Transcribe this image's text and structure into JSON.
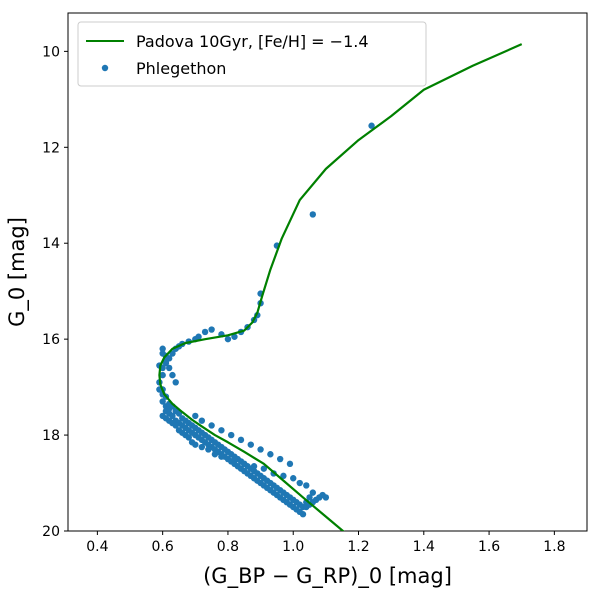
{
  "chart_data": {
    "type": "scatter",
    "xlabel": "(G_BP − G_RP)_0 [mag]",
    "ylabel": "G_0 [mag]",
    "xlim": [
      0.31,
      1.9
    ],
    "ylim": [
      20.0,
      9.2
    ],
    "y_inverted": true,
    "xticks": [
      "0.4",
      "0.6",
      "0.8",
      "1.0",
      "1.2",
      "1.4",
      "1.6",
      "1.8"
    ],
    "yticks": [
      "10",
      "12",
      "14",
      "16",
      "18",
      "20"
    ],
    "legend": {
      "placement": "top-left"
    },
    "series": [
      {
        "name": "Padova 10Gyr, [Fe/H] = −1.4",
        "kind": "line",
        "color": "#008000",
        "x": [
          1.17,
          1.1,
          1.03,
          0.97,
          0.91,
          0.85,
          0.8,
          0.76,
          0.72,
          0.69,
          0.66,
          0.63,
          0.605,
          0.593,
          0.59,
          0.593,
          0.605,
          0.63,
          0.67,
          0.73,
          0.8,
          0.85,
          0.875,
          0.89,
          0.905,
          0.93,
          0.965,
          1.02,
          1.1,
          1.2,
          1.3,
          1.4,
          1.55,
          1.7
        ],
        "y": [
          20.1,
          19.7,
          19.3,
          18.95,
          18.6,
          18.35,
          18.15,
          18.0,
          17.82,
          17.68,
          17.52,
          17.35,
          17.15,
          16.95,
          16.75,
          16.55,
          16.38,
          16.2,
          16.08,
          16.0,
          15.92,
          15.82,
          15.65,
          15.45,
          15.1,
          14.55,
          13.9,
          13.1,
          12.45,
          11.85,
          11.35,
          10.8,
          10.3,
          9.85
        ]
      },
      {
        "name": "Phlegethon",
        "kind": "scatter",
        "color": "#1f77b4",
        "x": [
          1.24,
          1.06,
          0.95,
          0.9,
          0.9,
          0.89,
          0.88,
          0.86,
          0.84,
          0.82,
          0.8,
          0.78,
          0.75,
          0.73,
          0.71,
          0.7,
          0.68,
          0.66,
          0.65,
          0.64,
          0.63,
          0.62,
          0.61,
          0.6,
          0.6,
          0.59,
          0.59,
          0.6,
          0.6,
          0.61,
          0.61,
          0.62,
          0.62,
          0.63,
          0.63,
          0.64,
          0.64,
          0.65,
          0.65,
          0.66,
          0.66,
          0.67,
          0.67,
          0.68,
          0.68,
          0.69,
          0.69,
          0.7,
          0.7,
          0.71,
          0.71,
          0.72,
          0.72,
          0.73,
          0.73,
          0.74,
          0.74,
          0.75,
          0.75,
          0.76,
          0.76,
          0.77,
          0.77,
          0.78,
          0.78,
          0.79,
          0.79,
          0.8,
          0.8,
          0.81,
          0.81,
          0.82,
          0.82,
          0.83,
          0.83,
          0.84,
          0.84,
          0.85,
          0.85,
          0.86,
          0.86,
          0.87,
          0.87,
          0.88,
          0.88,
          0.89,
          0.89,
          0.9,
          0.9,
          0.91,
          0.91,
          0.92,
          0.92,
          0.93,
          0.93,
          0.94,
          0.94,
          0.95,
          0.95,
          0.96,
          0.96,
          0.97,
          0.97,
          0.98,
          0.98,
          0.99,
          0.99,
          1.0,
          1.0,
          1.01,
          1.01,
          1.02,
          1.02,
          1.03,
          1.03,
          1.04,
          1.04,
          1.05,
          1.05,
          1.06,
          1.06,
          1.07,
          1.08,
          1.09,
          1.1,
          0.6,
          0.61,
          0.62,
          0.63,
          0.64,
          0.6,
          0.61,
          0.62,
          0.6,
          0.61,
          0.59,
          0.6,
          0.61,
          0.62,
          0.63,
          0.64,
          0.65,
          0.66,
          0.67,
          0.68,
          0.69,
          0.7,
          0.72,
          0.74,
          0.76,
          0.78,
          0.82,
          0.85,
          0.88,
          0.91,
          0.94,
          0.97,
          1.0,
          1.02,
          1.04,
          0.99,
          0.96,
          0.93,
          0.9,
          0.87,
          0.84,
          0.81,
          0.78,
          0.75,
          0.72,
          0.7
        ],
        "y": [
          11.55,
          13.4,
          14.05,
          15.05,
          15.25,
          15.5,
          15.6,
          15.75,
          15.85,
          15.95,
          16.0,
          15.9,
          15.8,
          15.85,
          15.95,
          16.0,
          16.05,
          16.1,
          16.15,
          16.2,
          16.3,
          16.4,
          16.5,
          16.6,
          16.75,
          16.9,
          17.05,
          17.15,
          17.3,
          17.4,
          17.5,
          17.55,
          17.45,
          17.6,
          17.4,
          17.7,
          17.5,
          17.75,
          17.55,
          17.8,
          17.65,
          17.85,
          17.7,
          17.9,
          17.75,
          17.95,
          17.8,
          18.0,
          17.85,
          18.05,
          17.9,
          18.1,
          17.95,
          18.15,
          18.0,
          18.2,
          18.05,
          18.25,
          18.1,
          18.3,
          18.15,
          18.35,
          18.2,
          18.4,
          18.25,
          18.45,
          18.3,
          18.5,
          18.35,
          18.55,
          18.4,
          18.6,
          18.45,
          18.65,
          18.5,
          18.7,
          18.55,
          18.75,
          18.6,
          18.8,
          18.65,
          18.85,
          18.7,
          18.9,
          18.75,
          18.95,
          18.8,
          19.0,
          18.85,
          19.05,
          18.9,
          19.1,
          18.95,
          19.15,
          19.0,
          19.2,
          19.05,
          19.25,
          19.1,
          19.3,
          19.15,
          19.35,
          19.2,
          19.4,
          19.25,
          19.45,
          19.3,
          19.5,
          19.35,
          19.55,
          19.4,
          19.6,
          19.45,
          19.65,
          19.5,
          19.5,
          19.4,
          19.45,
          19.3,
          19.4,
          19.2,
          19.35,
          19.3,
          19.25,
          19.3,
          16.3,
          16.45,
          16.6,
          16.75,
          16.9,
          17.05,
          17.2,
          17.35,
          16.2,
          16.35,
          16.55,
          17.6,
          17.65,
          17.7,
          17.75,
          17.8,
          17.9,
          17.95,
          18.0,
          18.05,
          18.15,
          18.2,
          18.25,
          18.3,
          18.4,
          18.45,
          18.5,
          18.6,
          18.65,
          18.7,
          18.8,
          18.85,
          18.9,
          19.0,
          19.05,
          18.6,
          18.5,
          18.4,
          18.3,
          18.2,
          18.1,
          18.0,
          17.9,
          17.8,
          17.7,
          17.6
        ]
      }
    ]
  }
}
